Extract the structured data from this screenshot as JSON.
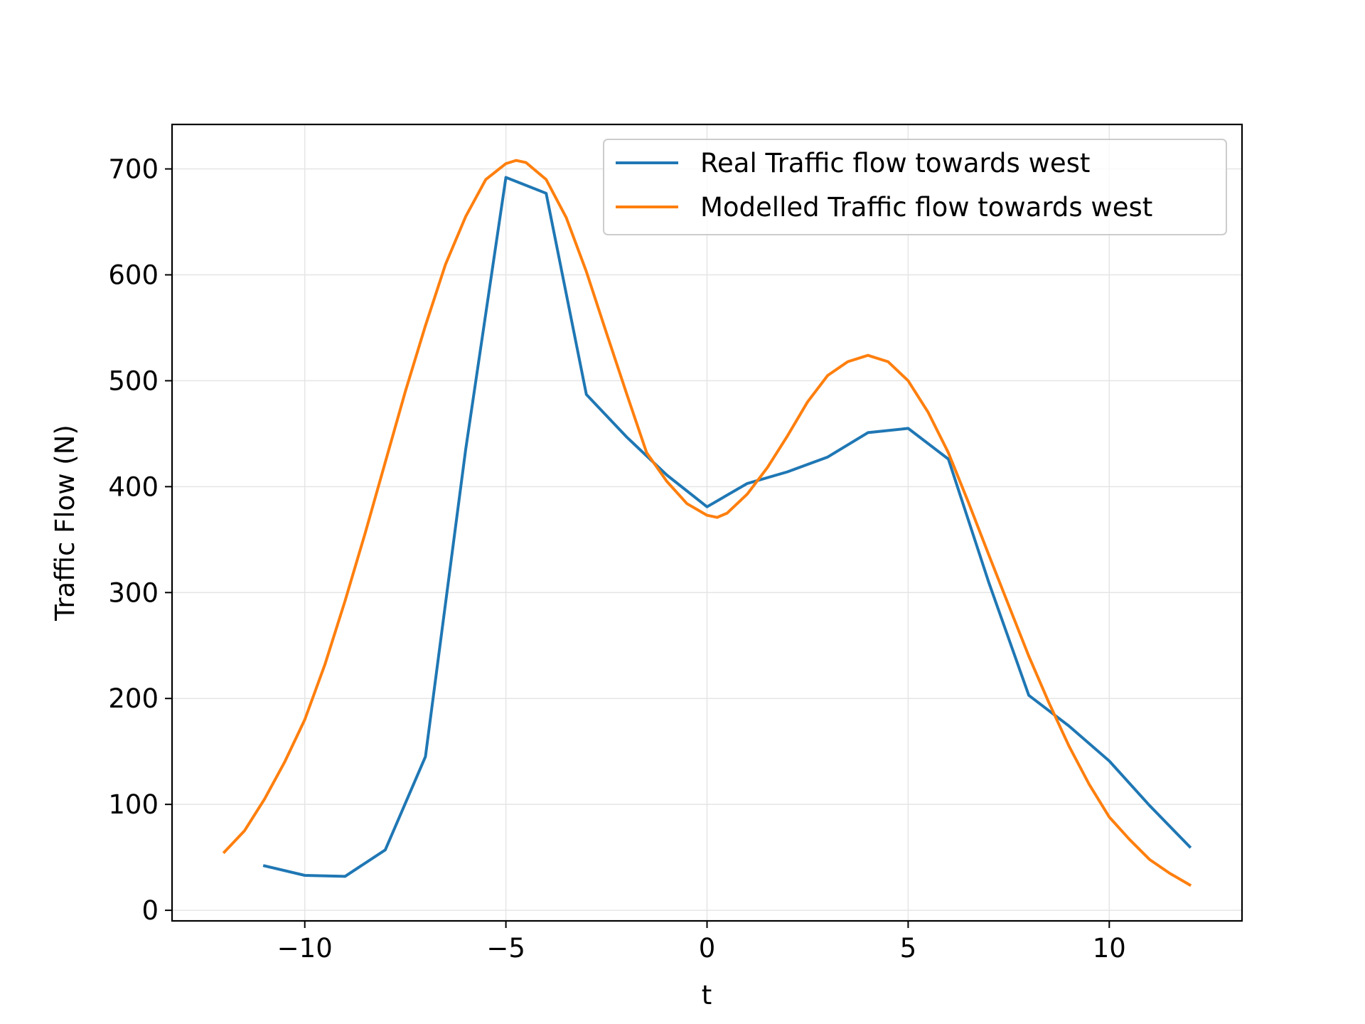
{
  "chart_data": {
    "type": "line",
    "title": "",
    "xlabel": "t",
    "ylabel": "Traffic Flow (N)",
    "xlim": [
      -13.3,
      13.3
    ],
    "ylim": [
      -10,
      742
    ],
    "xticks": [
      -10,
      -5,
      0,
      5,
      10
    ],
    "xtick_labels": [
      "−10",
      "−5",
      "0",
      "5",
      "10"
    ],
    "yticks": [
      0,
      100,
      200,
      300,
      400,
      500,
      600,
      700
    ],
    "ytick_labels": [
      "0",
      "100",
      "200",
      "300",
      "400",
      "500",
      "600",
      "700"
    ],
    "grid": true,
    "legend_position": "top-right",
    "series": [
      {
        "name": "Real Traffic flow towards west",
        "color": "#1f77b4",
        "x": [
          -11,
          -10,
          -9,
          -8,
          -7,
          -6,
          -5,
          -4,
          -3,
          -2,
          -1,
          0,
          1,
          2,
          3,
          4,
          5,
          6,
          7,
          8,
          9,
          10,
          11,
          12
        ],
        "y": [
          42,
          33,
          32,
          57,
          145,
          435,
          692,
          677,
          487,
          447,
          411,
          381,
          403,
          414,
          428,
          451,
          455,
          426,
          310,
          203,
          174,
          141,
          99,
          60
        ]
      },
      {
        "name": "Modelled Traffic flow towards west",
        "color": "#ff7f0e",
        "x": [
          -12,
          -11.5,
          -11,
          -10.5,
          -10,
          -9.5,
          -9,
          -8.5,
          -8,
          -7.5,
          -7,
          -6.5,
          -6,
          -5.5,
          -5,
          -4.75,
          -4.5,
          -4,
          -3.5,
          -3,
          -2.5,
          -2,
          -1.5,
          -1,
          -0.5,
          0,
          0.25,
          0.5,
          1,
          1.5,
          2,
          2.5,
          3,
          3.5,
          4,
          4.5,
          5,
          5.5,
          6,
          6.5,
          7,
          7.5,
          8,
          8.5,
          9,
          9.5,
          10,
          10.5,
          11,
          11.5,
          12
        ],
        "y": [
          55,
          75,
          105,
          140,
          180,
          232,
          292,
          356,
          423,
          490,
          552,
          610,
          655,
          690,
          705,
          708,
          706,
          690,
          654,
          603,
          545,
          488,
          432,
          405,
          384,
          373,
          371,
          375,
          393,
          418,
          448,
          480,
          505,
          518,
          524,
          518,
          500,
          470,
          432,
          385,
          336,
          288,
          240,
          196,
          155,
          119,
          88,
          67,
          48,
          35,
          24
        ]
      }
    ]
  }
}
